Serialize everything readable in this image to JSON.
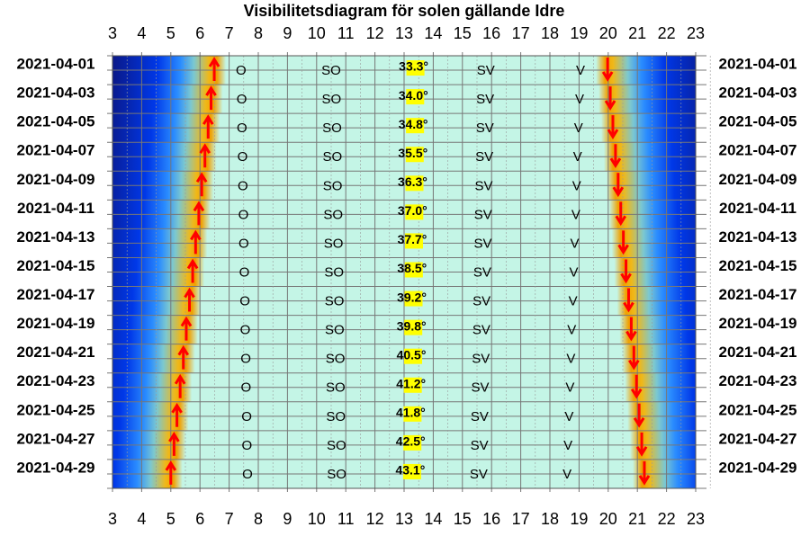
{
  "chart_data": {
    "type": "visibility",
    "title": "Visibilitetsdiagram för solen gällande Idre",
    "xlim": [
      3,
      23
    ],
    "xticks": [
      3,
      4,
      5,
      6,
      7,
      8,
      9,
      10,
      11,
      12,
      13,
      14,
      15,
      16,
      17,
      18,
      19,
      20,
      21,
      22,
      23
    ],
    "categories": [
      "2021-04-01",
      "2021-04-03",
      "2021-04-05",
      "2021-04-07",
      "2021-04-09",
      "2021-04-11",
      "2021-04-13",
      "2021-04-15",
      "2021-04-17",
      "2021-04-19",
      "2021-04-21",
      "2021-04-23",
      "2021-04-25",
      "2021-04-27",
      "2021-04-29"
    ],
    "sunrise": [
      6.49,
      6.38,
      6.28,
      6.17,
      6.06,
      5.96,
      5.85,
      5.75,
      5.64,
      5.53,
      5.43,
      5.32,
      5.21,
      5.11,
      5.0
    ],
    "sunset": [
      19.98,
      20.07,
      20.16,
      20.25,
      20.34,
      20.43,
      20.52,
      20.61,
      20.7,
      20.79,
      20.88,
      20.97,
      21.06,
      21.15,
      21.24
    ],
    "altitude": {
      "values": [
        33.3,
        34.0,
        34.8,
        35.5,
        36.3,
        37.0,
        37.7,
        38.5,
        39.2,
        39.8,
        40.5,
        41.2,
        41.8,
        42.5,
        43.1
      ],
      "value_labels": [
        "33.3°",
        "34.0°",
        "34.8°",
        "35.5°",
        "36.3°",
        "37.0°",
        "37.7°",
        "38.5°",
        "39.2°",
        "39.8°",
        "40.5°",
        "41.2°",
        "41.8°",
        "42.5°",
        "43.1°"
      ]
    },
    "directions": [
      {
        "name": "O",
        "values": [
          7.41,
          7.43,
          7.44,
          7.46,
          7.47,
          7.49,
          7.5,
          7.52,
          7.54,
          7.55,
          7.57,
          7.58,
          7.6,
          7.61,
          7.63
        ]
      },
      {
        "name": "SO",
        "values": [
          10.5,
          10.51,
          10.53,
          10.54,
          10.55,
          10.57,
          10.58,
          10.6,
          10.61,
          10.62,
          10.64,
          10.65,
          10.66,
          10.68,
          10.69
        ]
      },
      {
        "name": "SV",
        "values": [
          15.8,
          15.78,
          15.77,
          15.75,
          15.73,
          15.71,
          15.7,
          15.68,
          15.66,
          15.65,
          15.63,
          15.61,
          15.59,
          15.58,
          15.56
        ]
      },
      {
        "name": "V",
        "values": [
          19.05,
          19.02,
          18.98,
          18.95,
          18.92,
          18.89,
          18.85,
          18.82,
          18.79,
          18.75,
          18.72,
          18.69,
          18.66,
          18.62,
          18.59
        ]
      }
    ],
    "colors": {
      "day": "#c4f5e6",
      "arrow": "#ff0000",
      "highlight": "#ffff00"
    },
    "grid": true
  }
}
